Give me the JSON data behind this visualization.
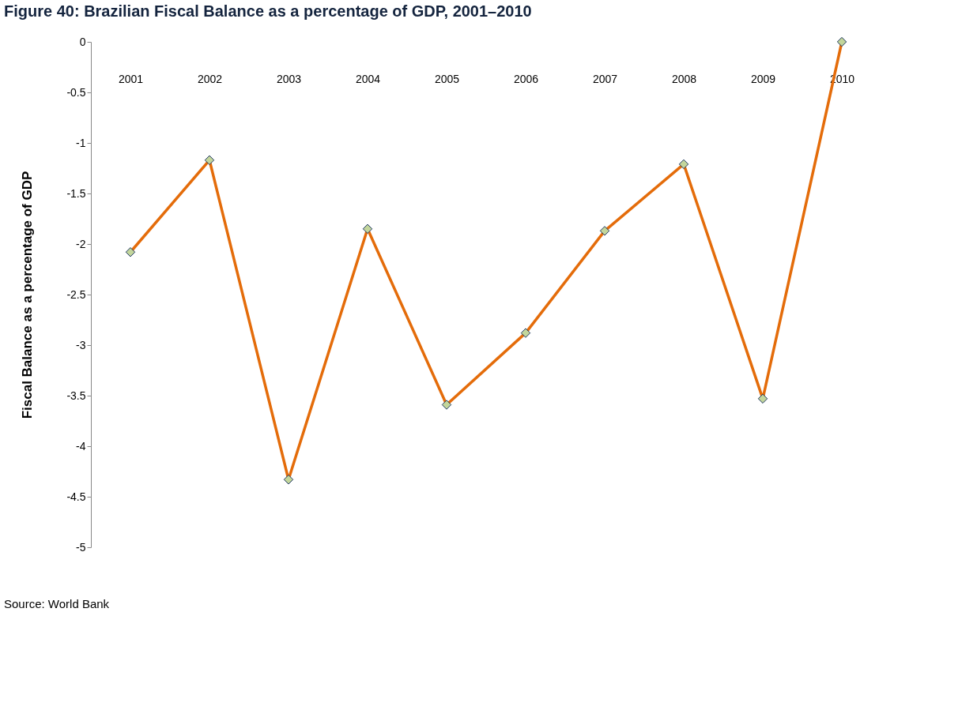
{
  "chart_data": {
    "type": "line",
    "title": "Figure 40: Brazilian Fiscal Balance as a percentage of GDP, 2001–2010",
    "ylabel": "Fiscal Balance  as  a  percentage  of  GDP",
    "categories": [
      "2001",
      "2002",
      "2003",
      "2004",
      "2005",
      "2006",
      "2007",
      "2008",
      "2009",
      "2010"
    ],
    "series": [
      {
        "color": "#e46c0a",
        "values": [
          -2.08,
          -1.17,
          -4.33,
          -1.85,
          -3.59,
          -2.88,
          -1.87,
          -1.21,
          -3.53,
          0
        ]
      }
    ],
    "ylim": [
      -5,
      0
    ],
    "yticks": [
      -5,
      -4.5,
      -4,
      -3.5,
      -3,
      -2.5,
      -2,
      -1.5,
      -1,
      -0.5,
      0
    ],
    "marker": "diamond",
    "grid": false,
    "annotations": [
      "Source: World Bank"
    ]
  }
}
